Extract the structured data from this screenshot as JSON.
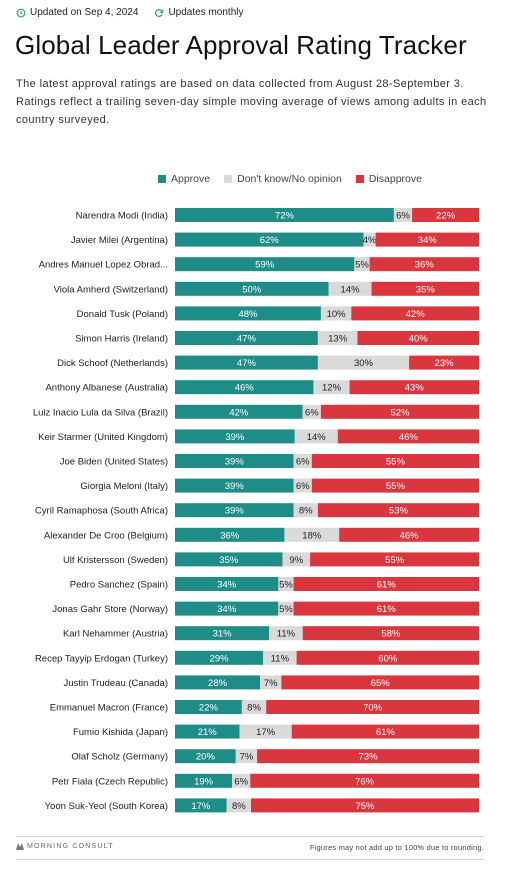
{
  "header": {
    "updated_label": "Updated on Sep 4, 2024",
    "frequency_label": "Updates monthly"
  },
  "title": "Global Leader Approval Rating Tracker",
  "subtitle": "The latest approval ratings are based on data collected from August 28-September 3. Ratings reflect a trailing seven-day simple moving average of views among adults in each country surveyed.",
  "colors": {
    "approve": "#1e8c87",
    "no_opinion": "#dadada",
    "disapprove": "#d9363e",
    "accent_icon": "#2aa37a"
  },
  "legend": {
    "approve": "Approve",
    "no_opinion": "Don't know/No opinion",
    "disapprove": "Disapprove"
  },
  "chart_data": {
    "type": "bar",
    "stacked": true,
    "orientation": "horizontal",
    "categories": [
      "Narendra Modi (India)",
      "Javier Milei (Argentina)",
      "Andres Manuel Lopez Obrad...",
      "Viola Amherd (Switzerland)",
      "Donald Tusk (Poland)",
      "Simon Harris (Ireland)",
      "Dick Schoof (Netherlands)",
      "Anthony Albanese (Australia)",
      "Luiz Inacio Lula da Silva (Brazil)",
      "Keir Starmer (United Kingdom)",
      "Joe Biden (United States)",
      "Giorgia Meloni (Italy)",
      "Cyril Ramaphosa (South Africa)",
      "Alexander De Croo (Belgium)",
      "Ulf Kristersson (Sweden)",
      "Pedro Sanchez (Spain)",
      "Jonas Gahr Store (Norway)",
      "Karl Nehammer (Austria)",
      "Recep Tayyip Erdogan (Turkey)",
      "Justin Trudeau (Canada)",
      "Emmanuel Macron (France)",
      "Fumio Kishida (Japan)",
      "Olaf Scholz (Germany)",
      "Petr Fiala (Czech Republic)",
      "Yoon Suk-Yeol (South Korea)"
    ],
    "series": [
      {
        "name": "Approve",
        "values": [
          72,
          62,
          59,
          50,
          48,
          47,
          47,
          46,
          42,
          39,
          39,
          39,
          39,
          36,
          35,
          34,
          34,
          31,
          29,
          28,
          22,
          21,
          20,
          19,
          17
        ]
      },
      {
        "name": "Don't know/No opinion",
        "values": [
          6,
          4,
          5,
          14,
          10,
          13,
          30,
          12,
          6,
          14,
          6,
          6,
          8,
          18,
          9,
          5,
          5,
          11,
          11,
          7,
          8,
          17,
          7,
          6,
          8
        ]
      },
      {
        "name": "Disapprove",
        "values": [
          22,
          34,
          36,
          35,
          42,
          40,
          23,
          43,
          52,
          46,
          55,
          55,
          53,
          46,
          55,
          61,
          61,
          58,
          60,
          65,
          70,
          61,
          73,
          76,
          75
        ]
      }
    ],
    "value_suffix": "%",
    "legend_position": "top"
  },
  "footer": {
    "logo_text": "MORNING CONSULT",
    "note": "Figures may not add up to 100% due to rounding."
  }
}
